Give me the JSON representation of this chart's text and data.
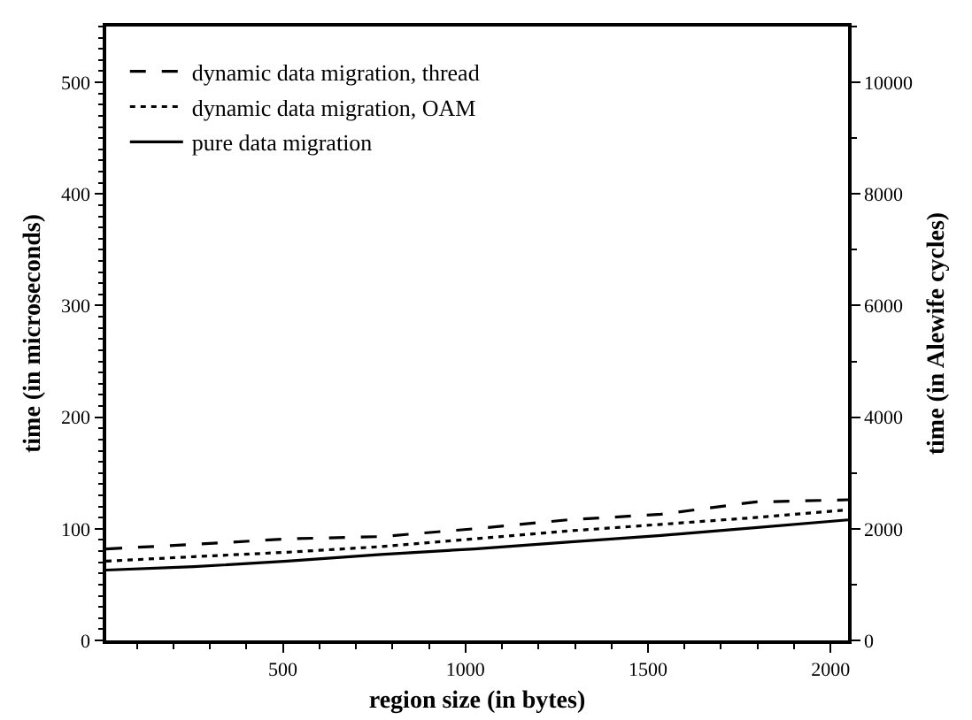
{
  "chart_data": {
    "type": "line",
    "xlabel": "region size (in bytes)",
    "ylabel": "time (in microseconds)",
    "y2label": "time (in Alewife cycles)",
    "x": [
      16,
      256,
      512,
      768,
      1024,
      1280,
      1536,
      1792,
      2048
    ],
    "series": [
      {
        "name": "dynamic data migration, thread",
        "color": "#000000",
        "line_style": "dashed",
        "values": [
          82,
          86,
          91,
          93,
          100,
          108,
          113,
          124,
          126
        ]
      },
      {
        "name": "dynamic data migration, OAM",
        "color": "#000000",
        "line_style": "dotted",
        "values": [
          71,
          75,
          79,
          84,
          91,
          98,
          104,
          110,
          117
        ]
      },
      {
        "name": "pure data migration",
        "color": "#000000",
        "line_style": "solid",
        "values": [
          63,
          66,
          71,
          77,
          82,
          88,
          94,
          101,
          108
        ]
      }
    ],
    "xlim": [
      16,
      2048
    ],
    "xticks": [
      500,
      1000,
      1500,
      2000
    ],
    "ylim": [
      0,
      550
    ],
    "yticks": [
      0,
      100,
      200,
      300,
      400,
      500
    ],
    "y2lim": [
      0,
      11000
    ],
    "y2ticks": [
      0,
      2000,
      4000,
      6000,
      8000,
      10000
    ],
    "grid": false,
    "legend": "top left",
    "marker": "none"
  }
}
